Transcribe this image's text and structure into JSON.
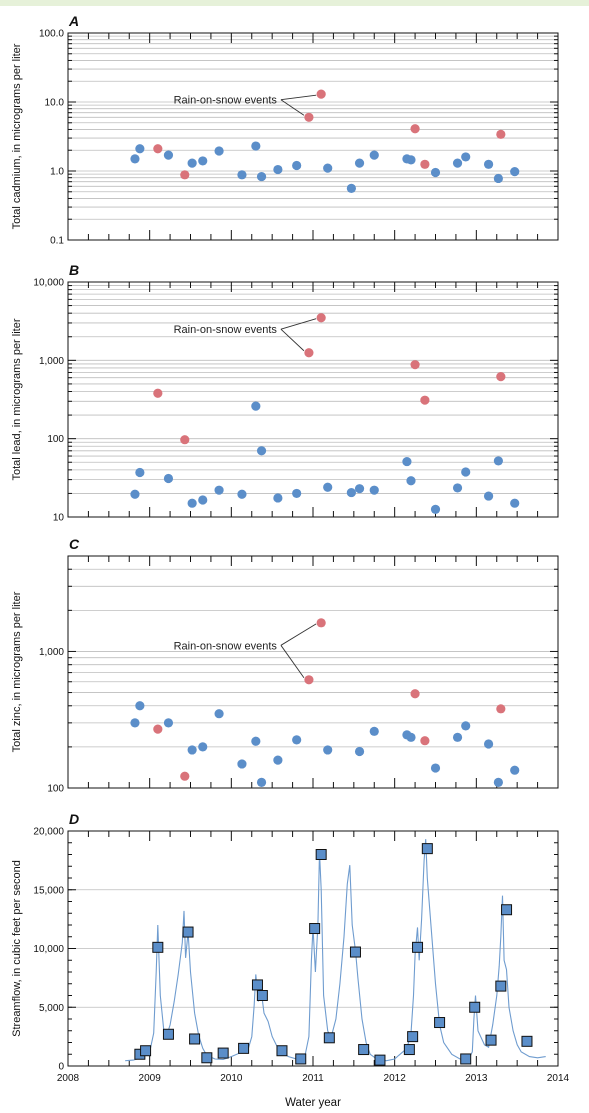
{
  "colors": {
    "normal": "#5b8ec9",
    "rain_on_snow": "#d9737a",
    "streamflow_line": "#6f9ccf",
    "marker_fill": "#5b8ec9",
    "marker_edge": "#111111"
  },
  "chart_data": [
    {
      "panel": "A",
      "type": "scatter",
      "yscale": "log",
      "ylim": [
        0.1,
        100
      ],
      "yticks": [
        0.1,
        1,
        10,
        100
      ],
      "yticklabels": [
        "0.1",
        "1.0",
        "10.0",
        "100.0"
      ],
      "ylabel": "Total cadmium, in micrograms per liter",
      "xlim": [
        2008,
        2014
      ],
      "annotation": "Rain-on-snow events",
      "series": [
        {
          "name": "",
          "role": "normal",
          "points": [
            [
              2008.82,
              1.5
            ],
            [
              2008.88,
              2.1
            ],
            [
              2009.23,
              1.7
            ],
            [
              2009.52,
              1.3
            ],
            [
              2009.65,
              1.4
            ],
            [
              2009.85,
              1.95
            ],
            [
              2010.13,
              0.88
            ],
            [
              2010.3,
              2.3
            ],
            [
              2010.37,
              0.83
            ],
            [
              2010.57,
              1.05
            ],
            [
              2010.8,
              1.2
            ],
            [
              2011.18,
              1.1
            ],
            [
              2011.47,
              0.56
            ],
            [
              2011.57,
              1.3
            ],
            [
              2011.75,
              1.7
            ],
            [
              2012.15,
              1.5
            ],
            [
              2012.2,
              1.45
            ],
            [
              2012.5,
              0.95
            ],
            [
              2012.77,
              1.3
            ],
            [
              2012.87,
              1.6
            ],
            [
              2013.15,
              1.25
            ],
            [
              2013.27,
              0.78
            ],
            [
              2013.47,
              0.98
            ]
          ]
        },
        {
          "name": "",
          "role": "rain_on_snow",
          "points": [
            [
              2009.1,
              2.1
            ],
            [
              2009.43,
              0.88
            ],
            [
              2010.95,
              6.0
            ],
            [
              2011.1,
              13.0
            ],
            [
              2012.25,
              4.1
            ],
            [
              2012.37,
              1.25
            ],
            [
              2013.3,
              3.4
            ]
          ]
        }
      ]
    },
    {
      "panel": "B",
      "type": "scatter",
      "yscale": "log",
      "ylim": [
        10,
        10000
      ],
      "yticks": [
        10,
        100,
        1000,
        10000
      ],
      "yticklabels": [
        "10",
        "100",
        "1,000",
        "10,000"
      ],
      "ylabel": "Total lead, in micrograms per liter",
      "xlim": [
        2008,
        2014
      ],
      "annotation": "Rain-on-snow events",
      "series": [
        {
          "name": "",
          "role": "normal",
          "points": [
            [
              2008.82,
              19.5
            ],
            [
              2008.88,
              37
            ],
            [
              2009.23,
              31
            ],
            [
              2009.52,
              15
            ],
            [
              2009.65,
              16.5
            ],
            [
              2009.85,
              22
            ],
            [
              2010.13,
              19.5
            ],
            [
              2010.3,
              260
            ],
            [
              2010.37,
              70
            ],
            [
              2010.57,
              17.5
            ],
            [
              2010.8,
              20
            ],
            [
              2011.18,
              24
            ],
            [
              2011.47,
              20.5
            ],
            [
              2011.57,
              23
            ],
            [
              2011.75,
              22
            ],
            [
              2012.15,
              51
            ],
            [
              2012.2,
              29
            ],
            [
              2012.5,
              12.5
            ],
            [
              2012.77,
              23.5
            ],
            [
              2012.87,
              37.5
            ],
            [
              2013.15,
              18.5
            ],
            [
              2013.27,
              52
            ],
            [
              2013.47,
              15
            ]
          ]
        },
        {
          "name": "",
          "role": "rain_on_snow",
          "points": [
            [
              2009.1,
              380
            ],
            [
              2009.43,
              97
            ],
            [
              2010.95,
              1250
            ],
            [
              2011.1,
              3500
            ],
            [
              2012.25,
              880
            ],
            [
              2012.37,
              310
            ],
            [
              2013.3,
              620
            ]
          ]
        }
      ]
    },
    {
      "panel": "C",
      "type": "scatter",
      "yscale": "log",
      "ylim": [
        100,
        5000
      ],
      "yticks": [
        100,
        1000
      ],
      "yticklabels": [
        "100",
        "1,000"
      ],
      "ylabel": "Total zinc, in micrograms per liter",
      "xlim": [
        2008,
        2014
      ],
      "annotation": "Rain-on-snow events",
      "series": [
        {
          "name": "",
          "role": "normal",
          "points": [
            [
              2008.82,
              300
            ],
            [
              2008.88,
              400
            ],
            [
              2009.23,
              300
            ],
            [
              2009.52,
              190
            ],
            [
              2009.65,
              200
            ],
            [
              2009.85,
              350
            ],
            [
              2010.13,
              150
            ],
            [
              2010.3,
              220
            ],
            [
              2010.37,
              110
            ],
            [
              2010.57,
              160
            ],
            [
              2010.8,
              225
            ],
            [
              2011.18,
              190
            ],
            [
              2011.57,
              185
            ],
            [
              2011.75,
              260
            ],
            [
              2012.15,
              245
            ],
            [
              2012.2,
              235
            ],
            [
              2012.5,
              140
            ],
            [
              2012.77,
              235
            ],
            [
              2012.87,
              285
            ],
            [
              2013.15,
              210
            ],
            [
              2013.27,
              110
            ],
            [
              2013.47,
              135
            ]
          ]
        },
        {
          "name": "",
          "role": "rain_on_snow",
          "points": [
            [
              2009.1,
              270
            ],
            [
              2009.43,
              122
            ],
            [
              2010.95,
              620
            ],
            [
              2011.1,
              1620
            ],
            [
              2012.25,
              490
            ],
            [
              2012.37,
              222
            ],
            [
              2013.3,
              380
            ]
          ]
        }
      ]
    },
    {
      "panel": "D",
      "type": "line",
      "yscale": "linear",
      "ylim": [
        0,
        20000
      ],
      "yticks": [
        0,
        5000,
        10000,
        15000,
        20000
      ],
      "yticklabels": [
        "0",
        "5,000",
        "10,000",
        "15,000",
        "20,000"
      ],
      "ylabel": "Streamflow, in cubic feet per second",
      "xlabel": "Water year",
      "xlim": [
        2008,
        2014
      ],
      "xticks": [
        2008,
        2009,
        2010,
        2011,
        2012,
        2013,
        2014
      ],
      "xticklabels": [
        "2008",
        "2009",
        "2010",
        "2011",
        "2012",
        "2013",
        "2014"
      ],
      "streamflow": [
        [
          2008.7,
          450
        ],
        [
          2008.8,
          500
        ],
        [
          2008.9,
          700
        ],
        [
          2009.0,
          1200
        ],
        [
          2009.05,
          2800
        ],
        [
          2009.08,
          8000
        ],
        [
          2009.1,
          12000
        ],
        [
          2009.13,
          6000
        ],
        [
          2009.17,
          3200
        ],
        [
          2009.2,
          2400
        ],
        [
          2009.25,
          3500
        ],
        [
          2009.3,
          5500
        ],
        [
          2009.35,
          7800
        ],
        [
          2009.4,
          10500
        ],
        [
          2009.42,
          13200
        ],
        [
          2009.44,
          9200
        ],
        [
          2009.47,
          11400
        ],
        [
          2009.5,
          8000
        ],
        [
          2009.55,
          4500
        ],
        [
          2009.6,
          2600
        ],
        [
          2009.65,
          1500
        ],
        [
          2009.7,
          900
        ],
        [
          2009.8,
          600
        ],
        [
          2009.9,
          550
        ],
        [
          2010.0,
          800
        ],
        [
          2010.1,
          1100
        ],
        [
          2010.15,
          1500
        ],
        [
          2010.2,
          1300
        ],
        [
          2010.25,
          2500
        ],
        [
          2010.28,
          5200
        ],
        [
          2010.3,
          7800
        ],
        [
          2010.33,
          5500
        ],
        [
          2010.37,
          6200
        ],
        [
          2010.4,
          4500
        ],
        [
          2010.45,
          3800
        ],
        [
          2010.5,
          2500
        ],
        [
          2010.55,
          1800
        ],
        [
          2010.6,
          1200
        ],
        [
          2010.7,
          800
        ],
        [
          2010.8,
          600
        ],
        [
          2010.9,
          800
        ],
        [
          2010.95,
          2500
        ],
        [
          2010.98,
          9000
        ],
        [
          2011.0,
          11800
        ],
        [
          2011.03,
          8000
        ],
        [
          2011.06,
          12000
        ],
        [
          2011.08,
          18200
        ],
        [
          2011.1,
          15000
        ],
        [
          2011.13,
          6000
        ],
        [
          2011.18,
          3000
        ],
        [
          2011.22,
          2400
        ],
        [
          2011.28,
          4000
        ],
        [
          2011.33,
          7000
        ],
        [
          2011.38,
          11000
        ],
        [
          2011.42,
          15500
        ],
        [
          2011.45,
          17100
        ],
        [
          2011.48,
          12000
        ],
        [
          2011.52,
          9800
        ],
        [
          2011.55,
          7500
        ],
        [
          2011.6,
          4000
        ],
        [
          2011.65,
          2000
        ],
        [
          2011.7,
          1000
        ],
        [
          2011.8,
          500
        ],
        [
          2011.9,
          450
        ],
        [
          2012.0,
          600
        ],
        [
          2012.05,
          900
        ],
        [
          2012.1,
          1200
        ],
        [
          2012.15,
          1500
        ],
        [
          2012.2,
          2800
        ],
        [
          2012.23,
          6000
        ],
        [
          2012.25,
          9500
        ],
        [
          2012.28,
          11800
        ],
        [
          2012.3,
          9000
        ],
        [
          2012.33,
          12500
        ],
        [
          2012.36,
          17500
        ],
        [
          2012.38,
          19300
        ],
        [
          2012.4,
          16000
        ],
        [
          2012.45,
          11500
        ],
        [
          2012.5,
          7000
        ],
        [
          2012.55,
          3500
        ],
        [
          2012.6,
          2000
        ],
        [
          2012.7,
          1000
        ],
        [
          2012.8,
          600
        ],
        [
          2012.9,
          500
        ],
        [
          2012.95,
          1200
        ],
        [
          2012.97,
          4000
        ],
        [
          2012.99,
          6000
        ],
        [
          2013.02,
          3000
        ],
        [
          2013.1,
          1800
        ],
        [
          2013.15,
          1600
        ],
        [
          2013.2,
          3500
        ],
        [
          2013.25,
          6000
        ],
        [
          2013.28,
          8500
        ],
        [
          2013.3,
          11000
        ],
        [
          2013.32,
          14500
        ],
        [
          2013.34,
          9000
        ],
        [
          2013.37,
          8200
        ],
        [
          2013.4,
          5000
        ],
        [
          2013.45,
          3000
        ],
        [
          2013.5,
          1800
        ],
        [
          2013.55,
          1200
        ],
        [
          2013.65,
          800
        ],
        [
          2013.75,
          700
        ],
        [
          2013.85,
          800
        ]
      ],
      "sample_markers": [
        [
          2008.88,
          1000
        ],
        [
          2008.95,
          1300
        ],
        [
          2009.1,
          10100
        ],
        [
          2009.23,
          2700
        ],
        [
          2009.47,
          11400
        ],
        [
          2009.55,
          2300
        ],
        [
          2009.7,
          700
        ],
        [
          2009.9,
          1100
        ],
        [
          2010.15,
          1500
        ],
        [
          2010.32,
          6900
        ],
        [
          2010.38,
          6000
        ],
        [
          2010.62,
          1300
        ],
        [
          2010.85,
          600
        ],
        [
          2011.02,
          11700
        ],
        [
          2011.1,
          18000
        ],
        [
          2011.2,
          2400
        ],
        [
          2011.52,
          9700
        ],
        [
          2011.62,
          1400
        ],
        [
          2011.82,
          500
        ],
        [
          2012.18,
          1400
        ],
        [
          2012.22,
          2500
        ],
        [
          2012.28,
          10100
        ],
        [
          2012.4,
          18500
        ],
        [
          2012.55,
          3700
        ],
        [
          2012.87,
          600
        ],
        [
          2012.98,
          5000
        ],
        [
          2013.18,
          2200
        ],
        [
          2013.3,
          6800
        ],
        [
          2013.37,
          13300
        ],
        [
          2013.62,
          2100
        ]
      ]
    }
  ]
}
